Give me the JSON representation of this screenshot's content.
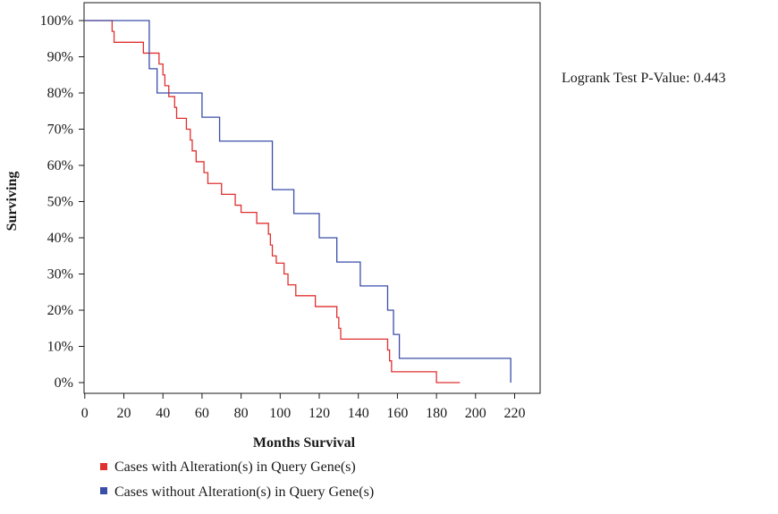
{
  "chart_data": {
    "type": "line",
    "subtype": "kaplan-meier step",
    "title": "",
    "xlabel": "Months Survival",
    "ylabel": "Surviving",
    "annotation": "Logrank Test P-Value: 0.443",
    "xlim": [
      0,
      230
    ],
    "ylim": [
      0,
      100
    ],
    "x_ticks": [
      0,
      20,
      40,
      60,
      80,
      100,
      120,
      140,
      160,
      180,
      200,
      220
    ],
    "x_tick_labels": [
      "0",
      "20",
      "40",
      "60",
      "80",
      "100",
      "120",
      "140",
      "160",
      "180",
      "200",
      "220"
    ],
    "y_ticks": [
      0,
      10,
      20,
      30,
      40,
      50,
      60,
      70,
      80,
      90,
      100
    ],
    "y_tick_labels": [
      "0%",
      "10%",
      "20%",
      "30%",
      "40%",
      "50%",
      "60%",
      "70%",
      "80%",
      "90%",
      "100%"
    ],
    "grid": false,
    "legend_position": "bottom-left",
    "series": [
      {
        "name": "Cases with Alteration(s) in Query Gene(s)",
        "color": "#e03030",
        "x": [
          0,
          14,
          15,
          30,
          38,
          40,
          41,
          43,
          46,
          47,
          52,
          54,
          55,
          57,
          61,
          63,
          70,
          77,
          80,
          88,
          94,
          95,
          96,
          98,
          102,
          104,
          108,
          118,
          129,
          130,
          131,
          155,
          156,
          157,
          160,
          168,
          180,
          192
        ],
        "y": [
          100,
          97,
          94,
          91,
          88,
          85,
          82,
          79,
          76,
          73,
          70,
          67,
          64,
          61,
          58,
          55,
          52,
          49,
          47,
          44,
          41,
          38,
          35,
          33,
          30,
          27,
          24,
          21,
          18,
          15,
          12,
          9,
          6,
          3,
          3,
          3,
          0,
          0
        ]
      },
      {
        "name": "Cases without Alteration(s) in Query Gene(s)",
        "color": "#3a4ea8",
        "x": [
          0,
          33,
          35,
          37,
          60,
          69,
          96,
          107,
          120,
          129,
          141,
          155,
          158,
          161,
          167,
          218
        ],
        "y": [
          100,
          86.7,
          86.7,
          80,
          73.3,
          66.7,
          53.3,
          46.7,
          40,
          33.3,
          26.7,
          20,
          13.3,
          6.7,
          6.7,
          0
        ]
      }
    ]
  }
}
